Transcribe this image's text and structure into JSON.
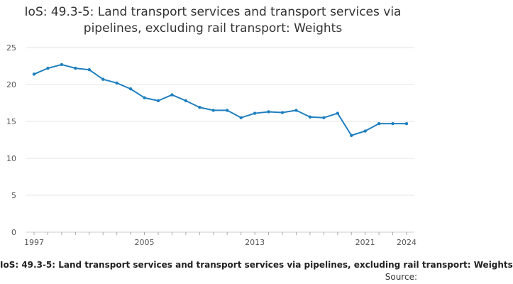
{
  "chart_data": {
    "type": "line",
    "title": "IoS: 49.3-5: Land transport services and transport services via pipelines, excluding rail transport: Weights",
    "x": [
      1997,
      1998,
      1999,
      2000,
      2001,
      2002,
      2003,
      2004,
      2005,
      2006,
      2007,
      2008,
      2009,
      2010,
      2011,
      2012,
      2013,
      2014,
      2015,
      2016,
      2017,
      2018,
      2019,
      2020,
      2021,
      2022,
      2023,
      2024
    ],
    "series": [
      {
        "values": [
          21.4,
          22.2,
          22.7,
          22.2,
          22.0,
          20.7,
          20.2,
          19.4,
          18.2,
          17.8,
          18.6,
          17.8,
          16.9,
          16.5,
          16.5,
          15.5,
          16.1,
          16.3,
          16.2,
          16.5,
          15.6,
          15.5,
          16.1,
          13.1,
          13.7,
          14.7,
          14.7,
          14.7
        ]
      }
    ],
    "xlim": [
      1997,
      2024
    ],
    "ylim": [
      0,
      25
    ],
    "x_ticks": [
      1997,
      2005,
      2013,
      2021,
      2024
    ],
    "y_ticks": [
      0,
      5,
      10,
      15,
      20,
      25
    ],
    "xlabel": "",
    "ylabel": "",
    "grid": "horizontal",
    "line_color": "#1f7fbf"
  },
  "footer": {
    "caption": "IoS: 49.3-5: Land transport services and transport services via pipelines, excluding rail transport: Weights",
    "source": "Source:"
  }
}
